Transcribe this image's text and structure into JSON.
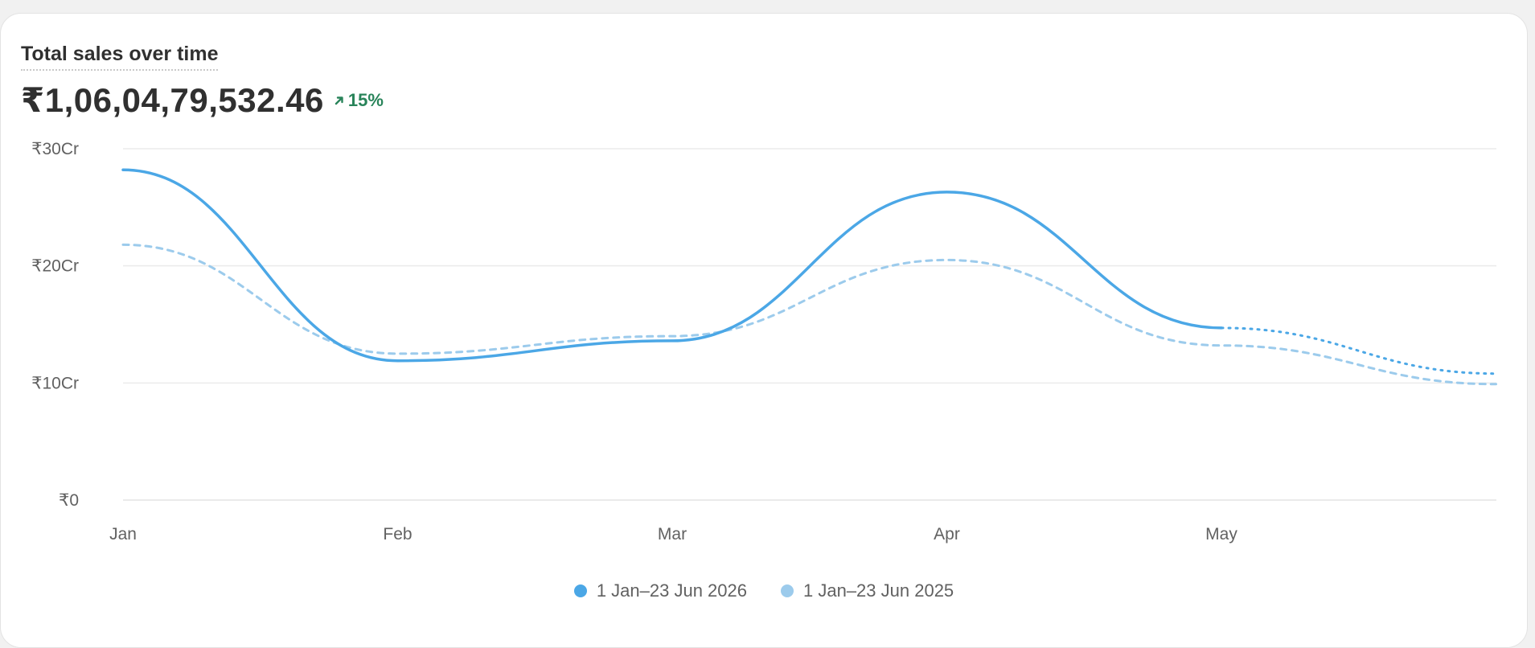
{
  "card": {
    "title": "Total sales over time",
    "total": "₹1,06,04,79,532.46",
    "change": "15%",
    "change_icon": "arrow-up-right-icon"
  },
  "colors": {
    "current": "#4ba7e6",
    "previous": "#9ccbec",
    "positive": "#29845a",
    "grid": "#ebebeb",
    "axis_text": "#616161"
  },
  "legend": [
    {
      "label": "1 Jan–23 Jun 2026",
      "color": "#4ba7e6"
    },
    {
      "label": "1 Jan–23 Jun 2025",
      "color": "#9ccbec"
    }
  ],
  "chart_data": {
    "type": "line",
    "title": "Total sales over time",
    "x_unit": "month",
    "x_ticks": [
      "Jan",
      "Feb",
      "Mar",
      "Apr",
      "May"
    ],
    "y_ticks": [
      "₹0",
      "₹10Cr",
      "₹20Cr",
      "₹30Cr"
    ],
    "ylim": [
      0,
      30
    ],
    "y_unit": "Cr",
    "grid": true,
    "legend_position": "bottom",
    "series": [
      {
        "name": "1 Jan–23 Jun 2026",
        "style": "solid",
        "projection_style": "dotted",
        "x": [
          0,
          1,
          2,
          3,
          4,
          5
        ],
        "values": [
          28.2,
          11.9,
          13.6,
          26.3,
          14.7,
          10.8
        ],
        "projected_from_index": 4
      },
      {
        "name": "1 Jan–23 Jun 2025",
        "style": "dashed",
        "x": [
          0,
          1,
          2,
          3,
          4,
          5
        ],
        "values": [
          21.8,
          12.5,
          14.0,
          20.5,
          13.2,
          9.9
        ]
      }
    ]
  }
}
